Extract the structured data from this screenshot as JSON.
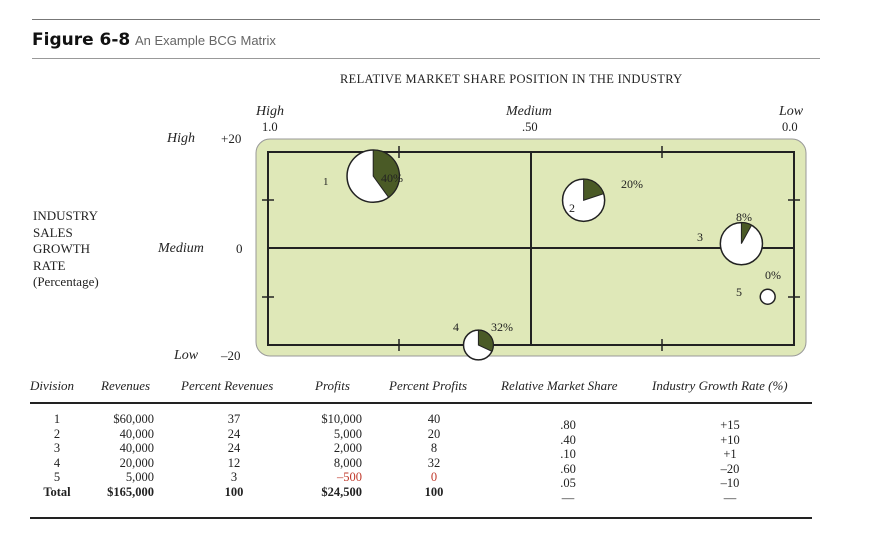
{
  "figure": {
    "number": "Figure 6-8",
    "caption": "An Example BCG Matrix"
  },
  "matrix": {
    "title": "RELATIVE MARKET SHARE POSITION IN THE INDUSTRY",
    "x_axis": {
      "high_label": "High",
      "high_value": "1.0",
      "medium_label": "Medium",
      "medium_value": ".50",
      "low_label": "Low",
      "low_value": "0.0"
    },
    "y_axis": {
      "title_lines": [
        "INDUSTRY",
        "SALES",
        "GROWTH",
        "RATE",
        "(Percentage)"
      ],
      "high_label": "High",
      "high_value": "+20",
      "medium_label": "Medium",
      "medium_value": "0",
      "low_label": "Low",
      "low_value": "–20"
    },
    "colors": {
      "background": "#dfe8b8",
      "border": "#222222",
      "pie_fill": "#4a5a26"
    },
    "divisions": [
      {
        "id": "1",
        "profit_pct_label": "40%",
        "profit_pct": 40,
        "relative_market_share": 0.8,
        "growth_rate": 15
      },
      {
        "id": "2",
        "profit_pct_label": "20%",
        "profit_pct": 20,
        "relative_market_share": 0.4,
        "growth_rate": 10
      },
      {
        "id": "3",
        "profit_pct_label": "8%",
        "profit_pct": 8,
        "relative_market_share": 0.1,
        "growth_rate": 1
      },
      {
        "id": "4",
        "profit_pct_label": "32%",
        "profit_pct": 32,
        "relative_market_share": 0.6,
        "growth_rate": -20
      },
      {
        "id": "5",
        "profit_pct_label": "0%",
        "profit_pct": 0,
        "relative_market_share": 0.05,
        "growth_rate": -10
      }
    ]
  },
  "table": {
    "headers": {
      "division": "Division",
      "revenues": "Revenues",
      "percent_revenues": "Percent Revenues",
      "profits": "Profits",
      "percent_profits": "Percent Profits",
      "relative_market_share": "Relative Market Share",
      "industry_growth_rate": "Industry Growth Rate (%)"
    },
    "division": [
      "1",
      "2",
      "3",
      "4",
      "5",
      "Total"
    ],
    "revenues": [
      "$60,000",
      "40,000",
      "40,000",
      "20,000",
      "5,000",
      "$165,000"
    ],
    "percent_revenues": [
      "37",
      "24",
      "24",
      "12",
      "3",
      "100"
    ],
    "profits": [
      "$10,000",
      "5,000",
      "2,000",
      "8,000",
      "–500",
      "$24,500"
    ],
    "percent_profits": [
      "40",
      "20",
      "8",
      "32",
      "0",
      "100"
    ],
    "relative_market_share": [
      ".80",
      ".40",
      ".10",
      ".60",
      ".05",
      "—"
    ],
    "industry_growth_rate": [
      "+15",
      "+10",
      "+1",
      "–20",
      "–10",
      "—"
    ]
  }
}
